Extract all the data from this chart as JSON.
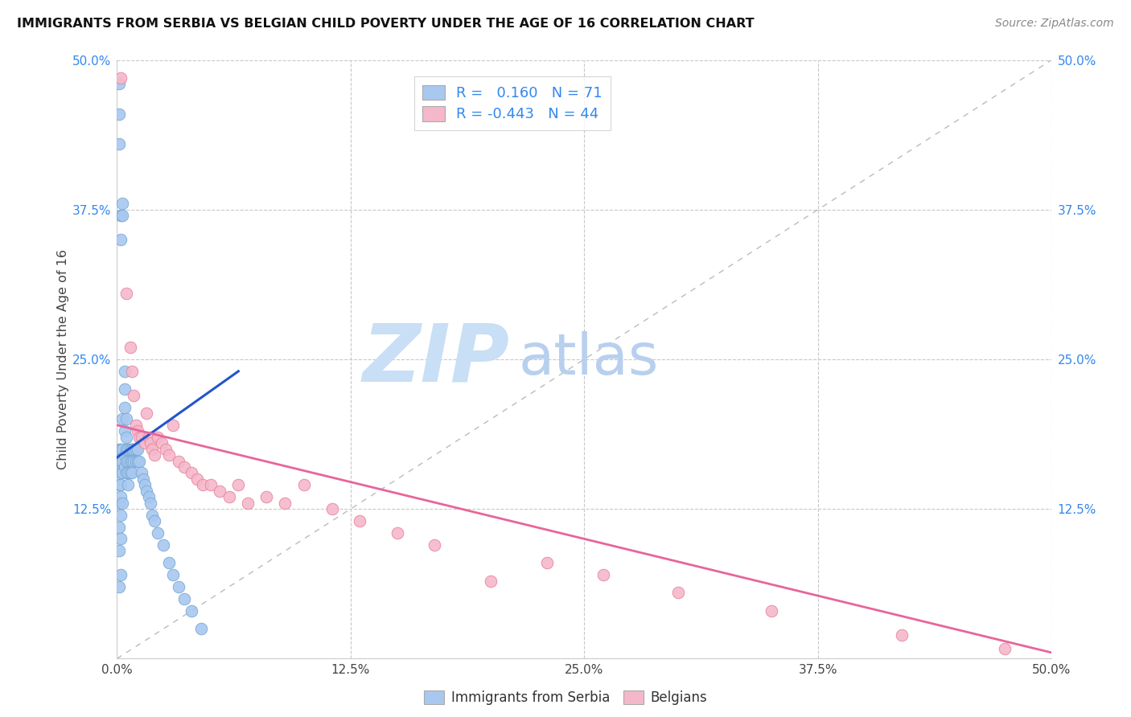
{
  "title": "IMMIGRANTS FROM SERBIA VS BELGIAN CHILD POVERTY UNDER THE AGE OF 16 CORRELATION CHART",
  "source": "Source: ZipAtlas.com",
  "ylabel": "Child Poverty Under the Age of 16",
  "xlim": [
    0,
    0.5
  ],
  "ylim": [
    0,
    0.5
  ],
  "xticks": [
    0.0,
    0.125,
    0.25,
    0.375,
    0.5
  ],
  "yticks": [
    0.0,
    0.125,
    0.25,
    0.375,
    0.5
  ],
  "xtick_labels": [
    "0.0%",
    "12.5%",
    "25.0%",
    "37.5%",
    "50.0%"
  ],
  "ytick_labels": [
    "",
    "12.5%",
    "25.0%",
    "37.5%",
    "50.0%"
  ],
  "blue_R": 0.16,
  "blue_N": 71,
  "pink_R": -0.443,
  "pink_N": 44,
  "blue_color": "#a8c8f0",
  "pink_color": "#f5b8cb",
  "blue_edge": "#7aaad4",
  "pink_edge": "#e8849e",
  "trend_blue": "#2255cc",
  "trend_pink": "#e8659a",
  "watermark_zip": "ZIP",
  "watermark_atlas": "atlas",
  "watermark_color_zip": "#c8dff5",
  "watermark_color_atlas": "#b8d4f0",
  "background": "#ffffff",
  "grid_color": "#c8c8c8",
  "legend_label_blue": "Immigrants from Serbia",
  "legend_label_pink": "Belgians",
  "blue_x": [
    0.001,
    0.001,
    0.001,
    0.001,
    0.001,
    0.001,
    0.001,
    0.001,
    0.001,
    0.001,
    0.002,
    0.002,
    0.002,
    0.002,
    0.002,
    0.002,
    0.002,
    0.002,
    0.002,
    0.002,
    0.003,
    0.003,
    0.003,
    0.003,
    0.003,
    0.003,
    0.003,
    0.004,
    0.004,
    0.004,
    0.004,
    0.004,
    0.004,
    0.005,
    0.005,
    0.005,
    0.005,
    0.005,
    0.006,
    0.006,
    0.006,
    0.006,
    0.007,
    0.007,
    0.007,
    0.008,
    0.008,
    0.008,
    0.009,
    0.009,
    0.01,
    0.01,
    0.011,
    0.011,
    0.012,
    0.013,
    0.014,
    0.015,
    0.016,
    0.017,
    0.018,
    0.019,
    0.02,
    0.022,
    0.025,
    0.028,
    0.03,
    0.033,
    0.036,
    0.04,
    0.045
  ],
  "blue_y": [
    0.48,
    0.455,
    0.43,
    0.175,
    0.16,
    0.145,
    0.13,
    0.11,
    0.09,
    0.06,
    0.37,
    0.35,
    0.175,
    0.165,
    0.155,
    0.145,
    0.135,
    0.12,
    0.1,
    0.07,
    0.38,
    0.37,
    0.2,
    0.175,
    0.165,
    0.155,
    0.13,
    0.24,
    0.225,
    0.21,
    0.19,
    0.17,
    0.16,
    0.2,
    0.185,
    0.175,
    0.165,
    0.155,
    0.175,
    0.165,
    0.155,
    0.145,
    0.175,
    0.165,
    0.155,
    0.175,
    0.165,
    0.155,
    0.175,
    0.165,
    0.175,
    0.165,
    0.175,
    0.165,
    0.165,
    0.155,
    0.15,
    0.145,
    0.14,
    0.135,
    0.13,
    0.12,
    0.115,
    0.105,
    0.095,
    0.08,
    0.07,
    0.06,
    0.05,
    0.04,
    0.025
  ],
  "pink_x": [
    0.002,
    0.005,
    0.007,
    0.008,
    0.009,
    0.01,
    0.011,
    0.012,
    0.013,
    0.015,
    0.016,
    0.017,
    0.018,
    0.019,
    0.02,
    0.022,
    0.024,
    0.026,
    0.028,
    0.03,
    0.033,
    0.036,
    0.04,
    0.043,
    0.046,
    0.05,
    0.055,
    0.06,
    0.065,
    0.07,
    0.08,
    0.09,
    0.1,
    0.115,
    0.13,
    0.15,
    0.17,
    0.2,
    0.23,
    0.26,
    0.3,
    0.35,
    0.42,
    0.475
  ],
  "pink_y": [
    0.485,
    0.305,
    0.26,
    0.24,
    0.22,
    0.195,
    0.19,
    0.185,
    0.185,
    0.18,
    0.205,
    0.185,
    0.18,
    0.175,
    0.17,
    0.185,
    0.18,
    0.175,
    0.17,
    0.195,
    0.165,
    0.16,
    0.155,
    0.15,
    0.145,
    0.145,
    0.14,
    0.135,
    0.145,
    0.13,
    0.135,
    0.13,
    0.145,
    0.125,
    0.115,
    0.105,
    0.095,
    0.065,
    0.08,
    0.07,
    0.055,
    0.04,
    0.02,
    0.008
  ],
  "blue_trend_x": [
    0.0,
    0.065
  ],
  "blue_trend_y_start": 0.168,
  "blue_trend_y_end": 0.24,
  "pink_trend_x": [
    0.0,
    0.5
  ],
  "pink_trend_y_start": 0.195,
  "pink_trend_y_end": 0.005
}
